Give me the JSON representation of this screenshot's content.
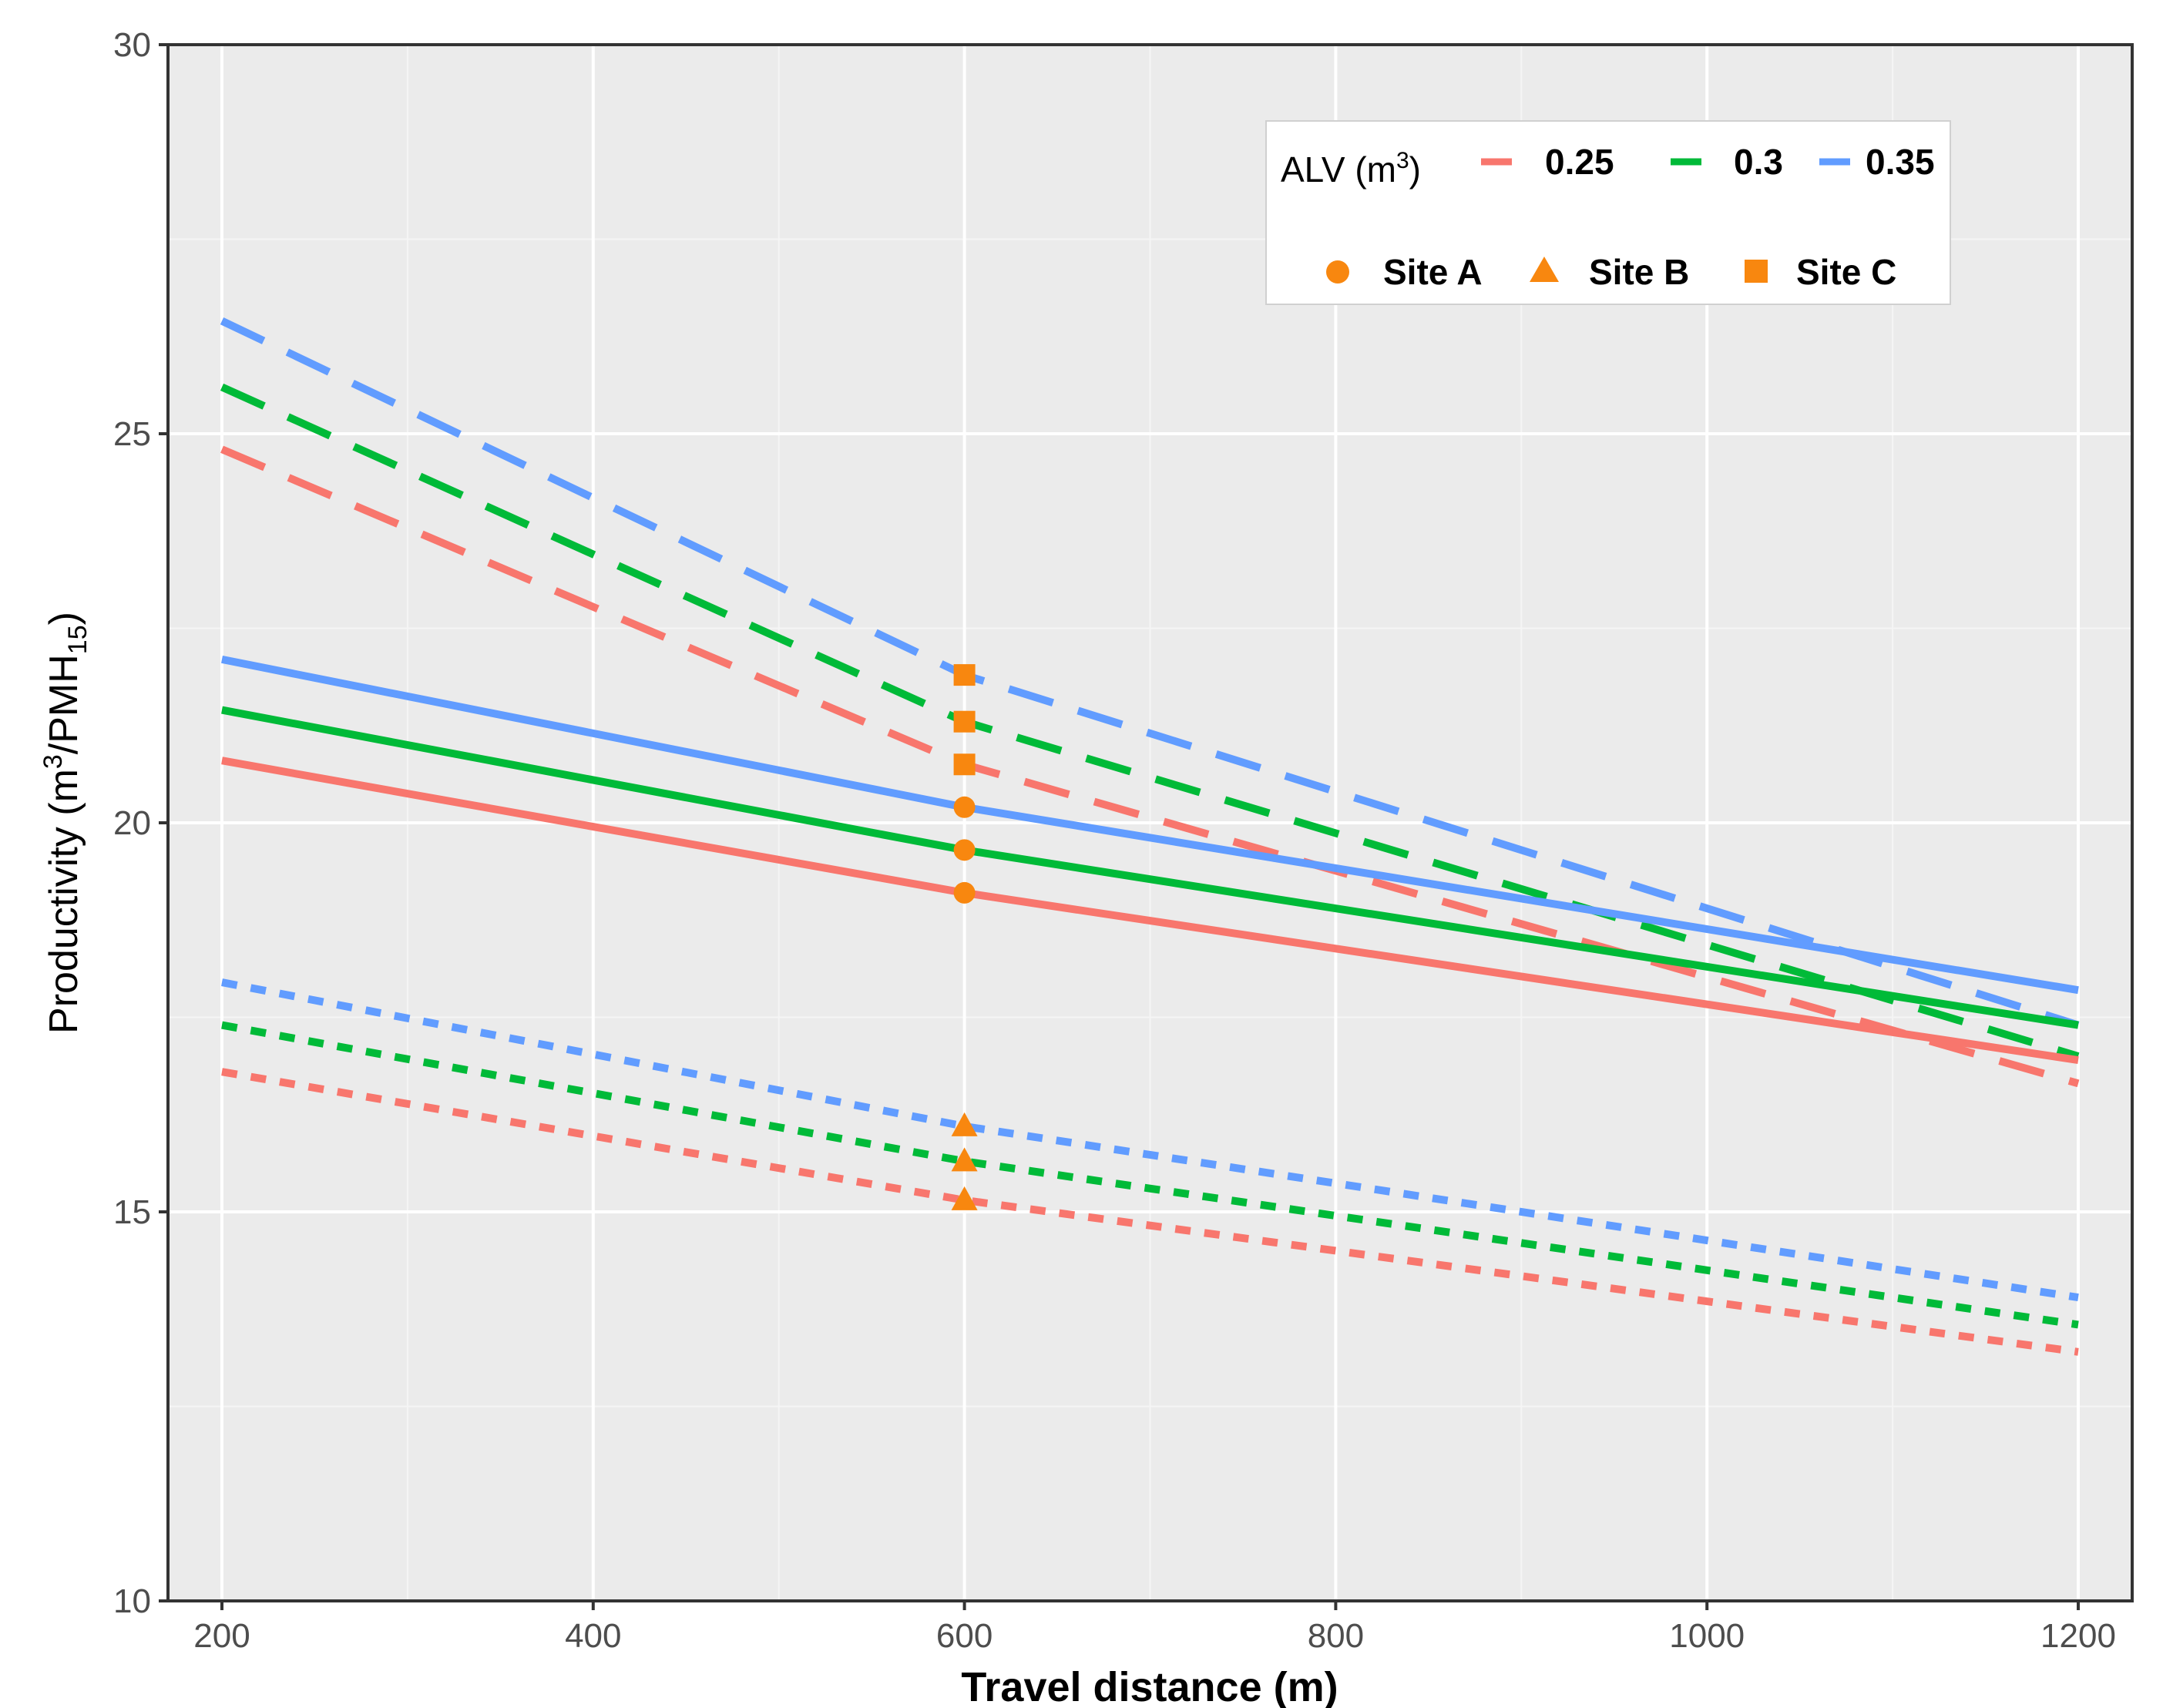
{
  "chart_data": {
    "type": "line",
    "title": "",
    "xlabel": "Travel distance (m)",
    "ylabel": {
      "main": "Productivity (m",
      "sup": "3",
      "mid": "/PMH",
      "sub": "15",
      "end": ")"
    },
    "xlim": [
      200,
      1200
    ],
    "ylim": [
      10,
      30
    ],
    "x_ticks": [
      200,
      400,
      600,
      800,
      1000,
      1200
    ],
    "y_ticks": [
      10,
      15,
      20,
      25,
      30
    ],
    "x_ticks_labels": [
      "200",
      "400",
      "600",
      "800",
      "1000",
      "1200"
    ],
    "y_ticks_labels": [
      "10",
      "15",
      "20",
      "25",
      "30"
    ],
    "grid": true,
    "legend": {
      "title": {
        "main": "ALV (m",
        "sup": "3",
        "end": ")"
      },
      "position": "top-right",
      "alv_entries": [
        {
          "label": "0.25",
          "color": "#F8766D"
        },
        {
          "label": "0.3",
          "color": "#00BA38"
        },
        {
          "label": "0.35",
          "color": "#619CFF"
        }
      ],
      "site_entries": [
        {
          "label": "Site A",
          "shape": "circle"
        },
        {
          "label": "Site B",
          "shape": "triangle"
        },
        {
          "label": "Site C",
          "shape": "square"
        }
      ]
    },
    "marker_color": "#F8870F",
    "series": [
      {
        "name": "Site A, ALV 0.25",
        "site": "Site A",
        "alv": "0.25",
        "linestyle": "solid",
        "color": "#F8766D",
        "x": [
          200,
          600,
          1200
        ],
        "y": [
          20.8,
          19.1,
          16.95
        ]
      },
      {
        "name": "Site A, ALV 0.3",
        "site": "Site A",
        "alv": "0.3",
        "linestyle": "solid",
        "color": "#00BA38",
        "x": [
          200,
          600,
          1200
        ],
        "y": [
          21.45,
          19.65,
          17.4
        ]
      },
      {
        "name": "Site A, ALV 0.35",
        "site": "Site A",
        "alv": "0.35",
        "linestyle": "solid",
        "color": "#619CFF",
        "x": [
          200,
          600,
          1200
        ],
        "y": [
          22.1,
          20.2,
          17.85
        ]
      },
      {
        "name": "Site B, ALV 0.25",
        "site": "Site B",
        "alv": "0.25",
        "linestyle": "dotted",
        "color": "#F8766D",
        "x": [
          200,
          600,
          1200
        ],
        "y": [
          16.8,
          15.15,
          13.2
        ]
      },
      {
        "name": "Site B, ALV 0.3",
        "site": "Site B",
        "alv": "0.3",
        "linestyle": "dotted",
        "color": "#00BA38",
        "x": [
          200,
          600,
          1200
        ],
        "y": [
          17.4,
          15.65,
          13.55
        ]
      },
      {
        "name": "Site B, ALV 0.35",
        "site": "Site B",
        "alv": "0.35",
        "linestyle": "dotted",
        "color": "#619CFF",
        "x": [
          200,
          600,
          1200
        ],
        "y": [
          17.95,
          16.1,
          13.9
        ]
      },
      {
        "name": "Site C, ALV 0.25",
        "site": "Site C",
        "alv": "0.25",
        "linestyle": "dashed",
        "color": "#F8766D",
        "x": [
          200,
          600,
          1200
        ],
        "y": [
          24.8,
          20.75,
          16.65
        ]
      },
      {
        "name": "Site C, ALV 0.3",
        "site": "Site C",
        "alv": "0.3",
        "linestyle": "dashed",
        "color": "#00BA38",
        "x": [
          200,
          600,
          1200
        ],
        "y": [
          25.6,
          21.3,
          17.0
        ]
      },
      {
        "name": "Site C, ALV 0.35",
        "site": "Site C",
        "alv": "0.35",
        "linestyle": "dashed",
        "color": "#619CFF",
        "x": [
          200,
          600,
          1200
        ],
        "y": [
          26.45,
          21.9,
          17.4
        ]
      }
    ],
    "markers": [
      {
        "site": "Site A",
        "shape": "circle",
        "x": 600,
        "y": 19.1
      },
      {
        "site": "Site A",
        "shape": "circle",
        "x": 600,
        "y": 19.65
      },
      {
        "site": "Site A",
        "shape": "circle",
        "x": 600,
        "y": 20.2
      },
      {
        "site": "Site B",
        "shape": "triangle",
        "x": 600,
        "y": 15.15
      },
      {
        "site": "Site B",
        "shape": "triangle",
        "x": 600,
        "y": 15.65
      },
      {
        "site": "Site B",
        "shape": "triangle",
        "x": 600,
        "y": 16.1
      },
      {
        "site": "Site C",
        "shape": "square",
        "x": 600,
        "y": 20.75
      },
      {
        "site": "Site C",
        "shape": "square",
        "x": 600,
        "y": 21.3
      },
      {
        "site": "Site C",
        "shape": "square",
        "x": 600,
        "y": 21.9
      }
    ]
  }
}
